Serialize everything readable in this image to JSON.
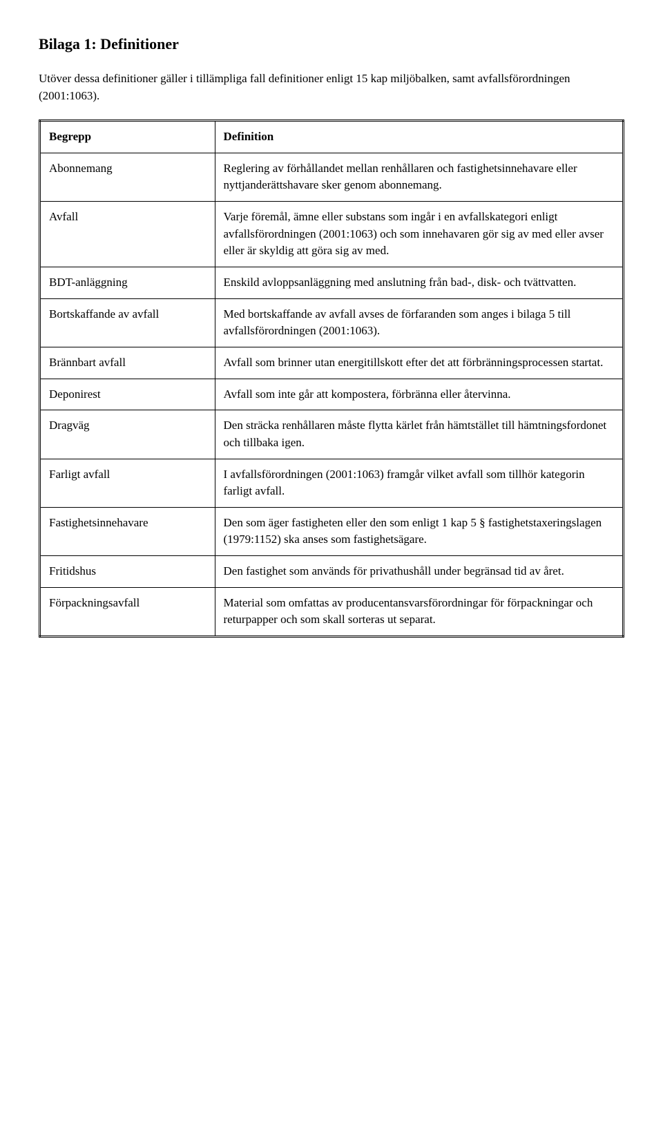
{
  "title": "Bilaga 1: Definitioner",
  "intro": "Utöver dessa definitioner gäller i tillämpliga fall definitioner enligt 15 kap miljöbalken, samt avfallsförordningen (2001:1063).",
  "columns": {
    "term": "Begrepp",
    "def": "Definition"
  },
  "rows": [
    {
      "term": "Abonnemang",
      "def": "Reglering av förhållandet mellan renhållaren och fastighetsinnehavare eller nyttjanderättshavare sker genom abonnemang."
    },
    {
      "term": "Avfall",
      "def": "Varje föremål, ämne eller substans som ingår i en avfallskategori enligt avfallsförordningen (2001:1063) och som innehavaren gör sig av med eller avser eller är skyldig att göra sig av med."
    },
    {
      "term": "BDT-anläggning",
      "def": "Enskild avloppsanläggning med anslutning från bad-, disk- och tvättvatten."
    },
    {
      "term": "Bortskaffande av avfall",
      "def": "Med bortskaffande av avfall avses de förfaranden som anges i bilaga 5 till avfallsförordningen (2001:1063)."
    },
    {
      "term": "Brännbart avfall",
      "def": "Avfall som brinner utan energitillskott efter det att förbränningsprocessen startat."
    },
    {
      "term": "Deponirest",
      "def": "Avfall som inte går att kompostera, förbränna eller återvinna."
    },
    {
      "term": "Dragväg",
      "def": "Den sträcka renhållaren måste flytta kärlet från hämtstället till hämtningsfordonet och tillbaka igen."
    },
    {
      "term": "Farligt avfall",
      "def": "I avfallsförordningen (2001:1063) framgår vilket avfall som tillhör kategorin farligt avfall."
    },
    {
      "term": "Fastighetsinnehavare",
      "def": "Den som äger fastigheten eller den som enligt 1 kap 5 § fastighetstaxeringslagen (1979:1152) ska anses som fastighetsägare."
    },
    {
      "term": "Fritidshus",
      "def": "Den fastighet som används för privathushåll under begränsad tid av året."
    },
    {
      "term": "Förpackningsavfall",
      "def": "Material som omfattas av producentansvarsförordningar för förpackningar och returpapper och som skall sorteras ut separat."
    }
  ],
  "style": {
    "background_color": "#ffffff",
    "text_color": "#000000",
    "border_color": "#000000",
    "title_fontsize": 22,
    "body_fontsize": 17,
    "font_family": "Georgia"
  }
}
